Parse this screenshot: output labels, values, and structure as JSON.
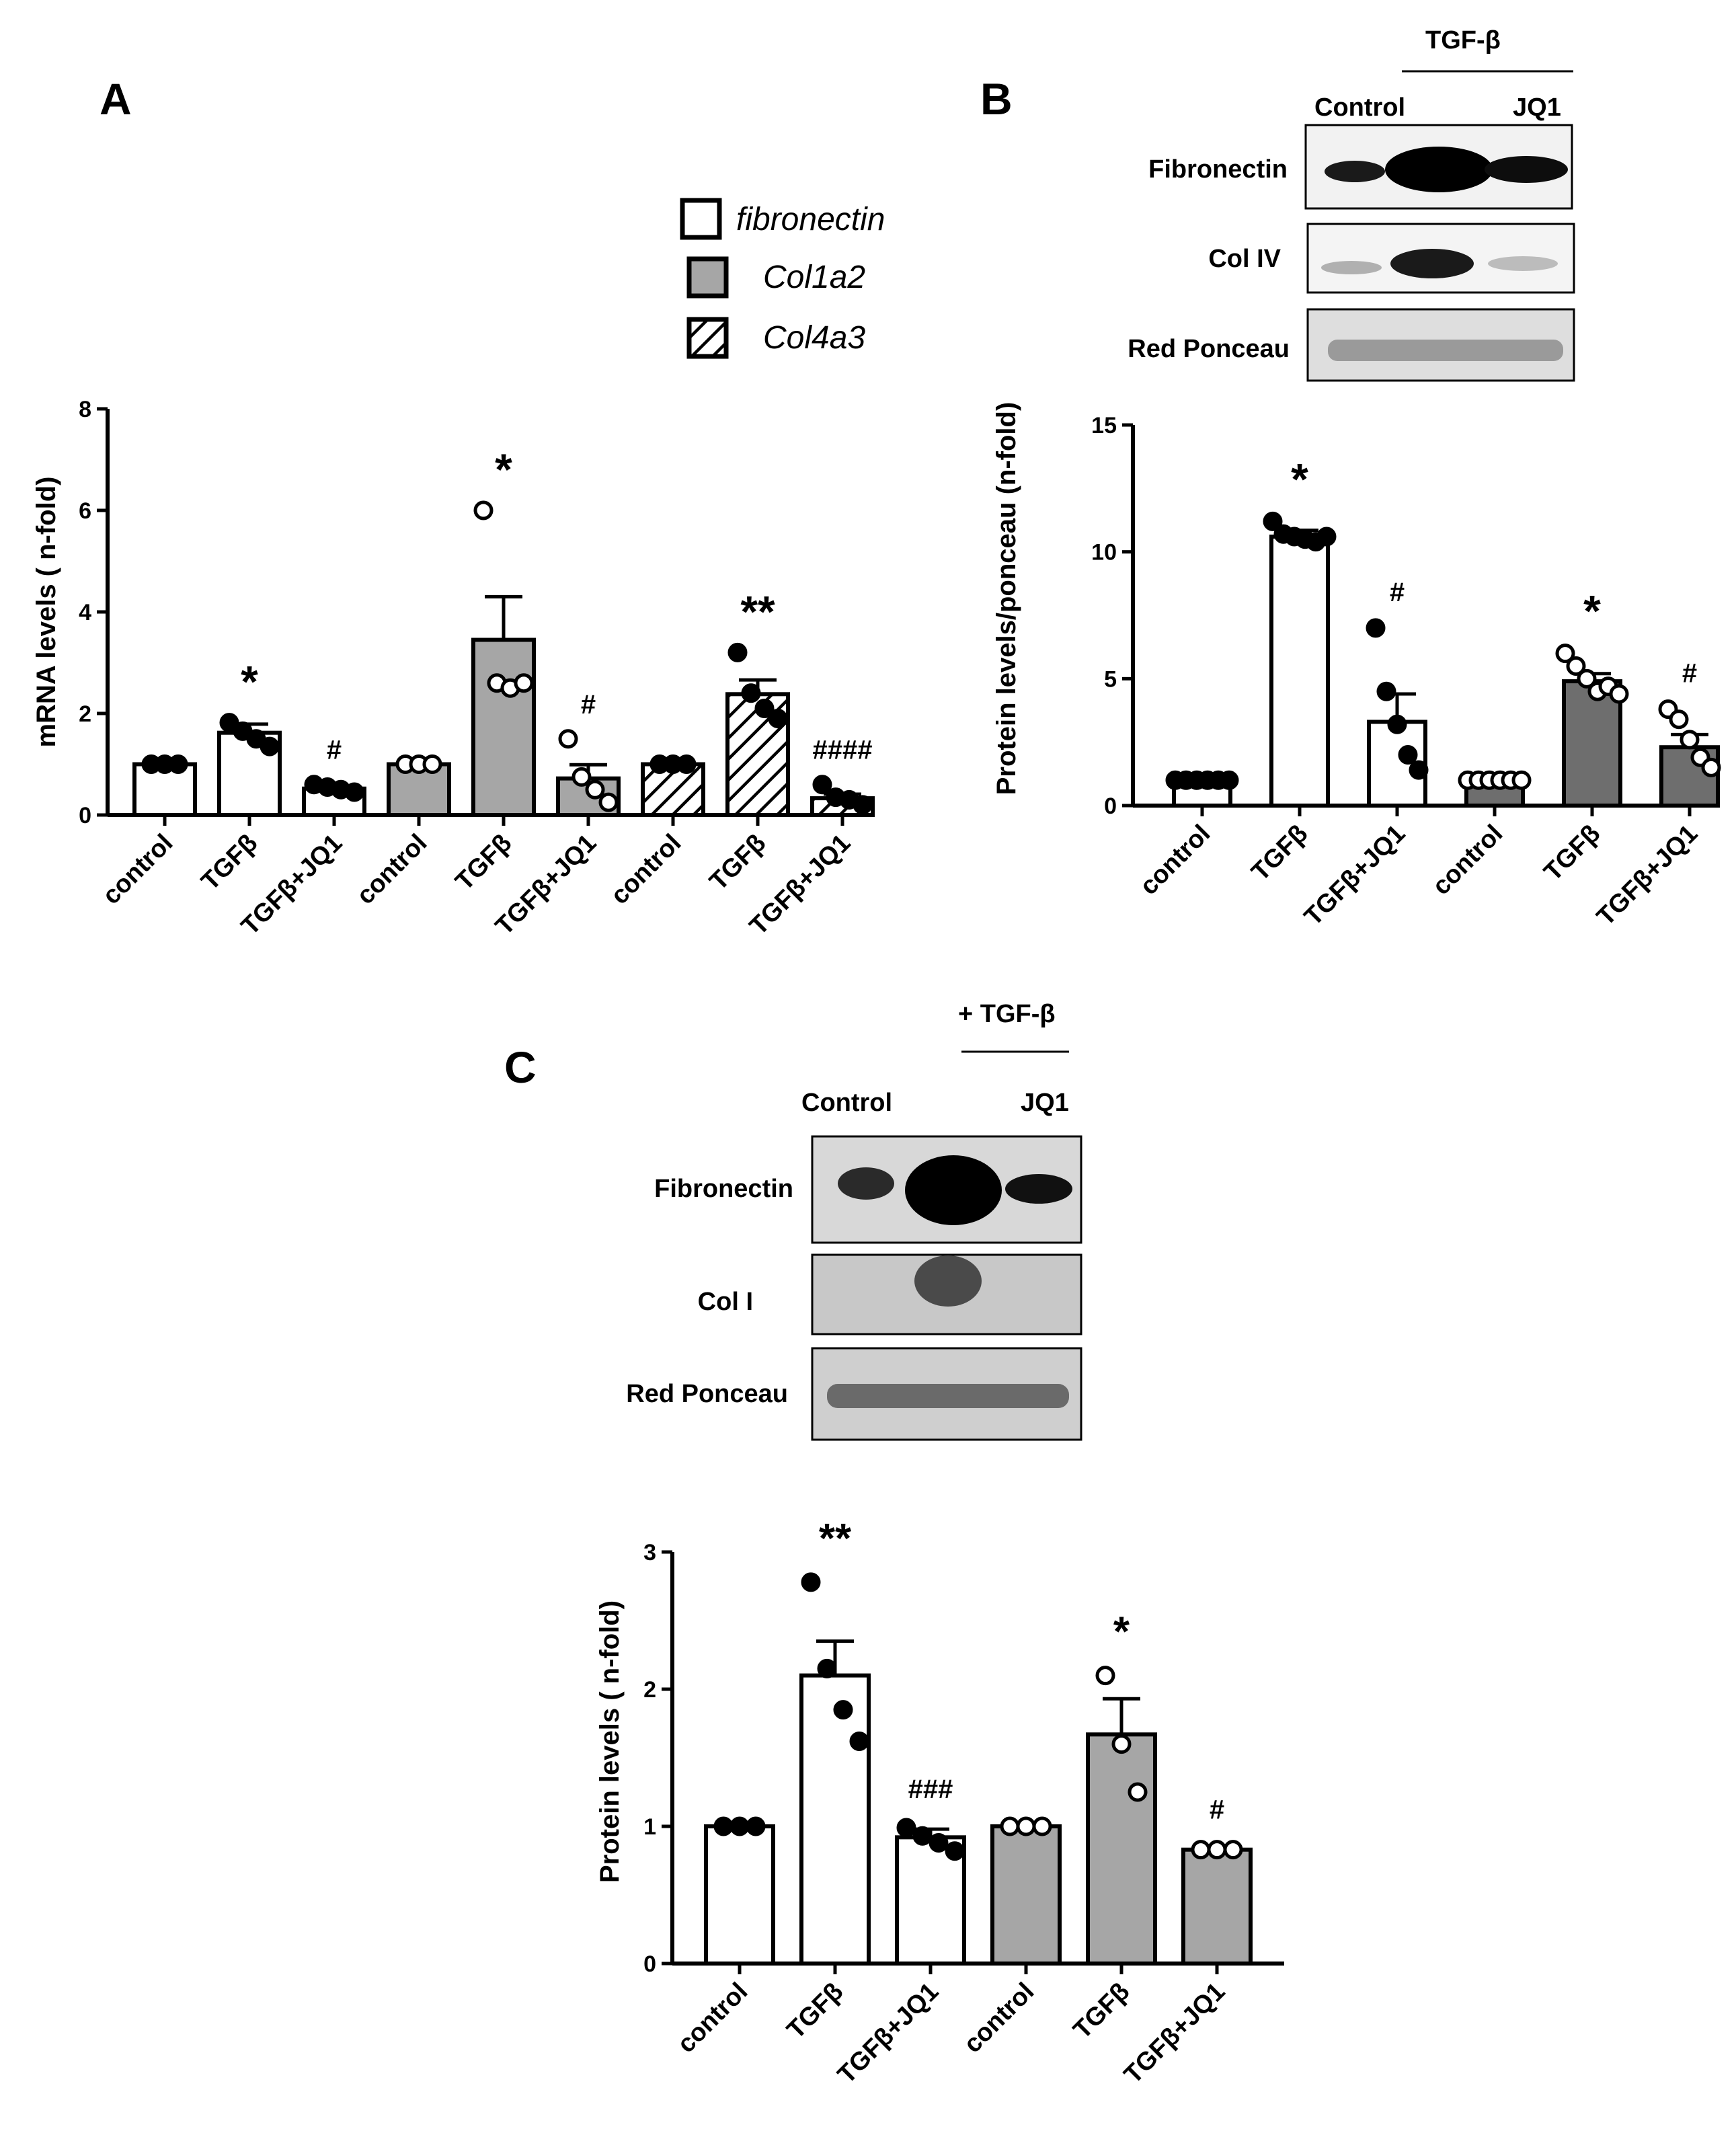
{
  "panels": {
    "A": {
      "label": "A"
    },
    "B": {
      "label": "B",
      "blot": {
        "treatment_header": "TGF-β",
        "lanes": [
          "Control",
          "JQ1"
        ],
        "rows": [
          "Fibronectin",
          "Col IV",
          "Red Ponceau"
        ]
      }
    },
    "C": {
      "label": "C",
      "blot": {
        "treatment_header": "+ TGF-β",
        "lanes": [
          "Control",
          "JQ1"
        ],
        "rows": [
          "Fibronectin",
          "Col I",
          "Red Ponceau"
        ]
      }
    }
  },
  "legend": [
    {
      "name": "fibronectin",
      "fill": "white"
    },
    {
      "name": "Col1a2",
      "fill": "grey"
    },
    {
      "name": "Col4a3",
      "fill": "hatched"
    }
  ],
  "colors": {
    "white_bar": "#ffffff",
    "grey_bar": "#a6a6a6",
    "dark_bar": "#6e6e6e",
    "stroke": "#000000"
  },
  "chart_data": [
    {
      "panel": "A",
      "type": "bar",
      "ylabel": "mRNA levels ( n-fold)",
      "ylim": [
        0,
        8
      ],
      "yticks": [
        0,
        2,
        4,
        6,
        8
      ],
      "categories": [
        "control",
        "TGFβ",
        "TGFβ+JQ1",
        "control",
        "TGFβ",
        "TGFβ+JQ1",
        "control",
        "TGFβ",
        "TGFβ+JQ1"
      ],
      "bars": [
        {
          "value": 1.0,
          "err": 0.0,
          "fill": "white",
          "points": [
            1.0,
            1.0,
            1.0
          ],
          "open": false,
          "sig": ""
        },
        {
          "value": 1.62,
          "err": 0.17,
          "fill": "white",
          "points": [
            1.82,
            1.65,
            1.5,
            1.35
          ],
          "open": false,
          "sig": "*"
        },
        {
          "value": 0.52,
          "err": 0.05,
          "fill": "white",
          "points": [
            0.6,
            0.55,
            0.5,
            0.45
          ],
          "open": false,
          "sig": "#"
        },
        {
          "value": 1.0,
          "err": 0.0,
          "fill": "grey",
          "points": [
            1.0,
            1.0,
            1.0
          ],
          "open": true,
          "sig": ""
        },
        {
          "value": 3.45,
          "err": 0.85,
          "fill": "grey",
          "points": [
            6.0,
            2.6,
            2.5,
            2.6
          ],
          "open": true,
          "sig": "*"
        },
        {
          "value": 0.72,
          "err": 0.27,
          "fill": "grey",
          "points": [
            1.5,
            0.75,
            0.5,
            0.25
          ],
          "open": true,
          "sig": "#"
        },
        {
          "value": 1.0,
          "err": 0.0,
          "fill": "hatched",
          "points": [
            1.0,
            1.0,
            1.0
          ],
          "open": false,
          "sig": ""
        },
        {
          "value": 2.38,
          "err": 0.28,
          "fill": "hatched",
          "points": [
            3.2,
            2.4,
            2.1,
            1.9
          ],
          "open": false,
          "sig": "**"
        },
        {
          "value": 0.33,
          "err": 0.08,
          "fill": "hatched",
          "points": [
            0.6,
            0.35,
            0.3,
            0.2
          ],
          "open": false,
          "sig": "####"
        }
      ]
    },
    {
      "panel": "B",
      "type": "bar",
      "ylabel": "Protein levels/ponceau (n-fold)",
      "ylim": [
        0,
        15
      ],
      "yticks": [
        0,
        5,
        10,
        15
      ],
      "categories": [
        "control",
        "TGFβ",
        "TGFβ+JQ1",
        "control",
        "TGFβ",
        "TGFβ+JQ1"
      ],
      "bars": [
        {
          "value": 1.0,
          "err": 0.0,
          "fill": "white",
          "points": [
            1.0,
            1.0,
            1.0,
            1.0,
            1.0,
            1.0
          ],
          "open": false,
          "sig": ""
        },
        {
          "value": 10.6,
          "err": 0.25,
          "fill": "white",
          "points": [
            11.2,
            10.7,
            10.6,
            10.5,
            10.4,
            10.6
          ],
          "open": false,
          "sig": "*"
        },
        {
          "value": 3.3,
          "err": 1.1,
          "fill": "white",
          "points": [
            7.0,
            4.5,
            3.2,
            2.0,
            1.4
          ],
          "open": false,
          "sig": "#"
        },
        {
          "value": 1.0,
          "err": 0.0,
          "fill": "dark",
          "points": [
            1.0,
            1.0,
            1.0,
            1.0,
            1.0,
            1.0
          ],
          "open": true,
          "sig": ""
        },
        {
          "value": 4.9,
          "err": 0.3,
          "fill": "dark",
          "points": [
            6.0,
            5.5,
            5.0,
            4.5,
            4.7,
            4.4
          ],
          "open": true,
          "sig": "*"
        },
        {
          "value": 2.3,
          "err": 0.5,
          "fill": "dark",
          "points": [
            3.8,
            3.4,
            2.6,
            1.9,
            1.5
          ],
          "open": true,
          "sig": "#"
        }
      ]
    },
    {
      "panel": "C",
      "type": "bar",
      "ylabel": "Protein levels ( n-fold)",
      "ylim": [
        0,
        3
      ],
      "yticks": [
        0,
        1,
        2,
        3
      ],
      "categories": [
        "control",
        "TGFβ",
        "TGFβ+JQ1",
        "control",
        "TGFβ",
        "TGFβ+JQ1"
      ],
      "bars": [
        {
          "value": 1.0,
          "err": 0.0,
          "fill": "white",
          "points": [
            1.0,
            1.0,
            1.0
          ],
          "open": false,
          "sig": ""
        },
        {
          "value": 2.1,
          "err": 0.25,
          "fill": "white",
          "points": [
            2.78,
            2.15,
            1.85,
            1.62
          ],
          "open": false,
          "sig": "**"
        },
        {
          "value": 0.92,
          "err": 0.06,
          "fill": "white",
          "points": [
            0.99,
            0.93,
            0.88,
            0.82
          ],
          "open": false,
          "sig": "###"
        },
        {
          "value": 1.0,
          "err": 0.0,
          "fill": "grey",
          "points": [
            1.0,
            1.0,
            1.0
          ],
          "open": true,
          "sig": ""
        },
        {
          "value": 1.67,
          "err": 0.26,
          "fill": "grey",
          "points": [
            2.1,
            1.6,
            1.25
          ],
          "open": true,
          "sig": "*"
        },
        {
          "value": 0.83,
          "err": 0.01,
          "fill": "grey",
          "points": [
            0.83,
            0.83,
            0.83
          ],
          "open": true,
          "sig": "#"
        }
      ]
    }
  ]
}
